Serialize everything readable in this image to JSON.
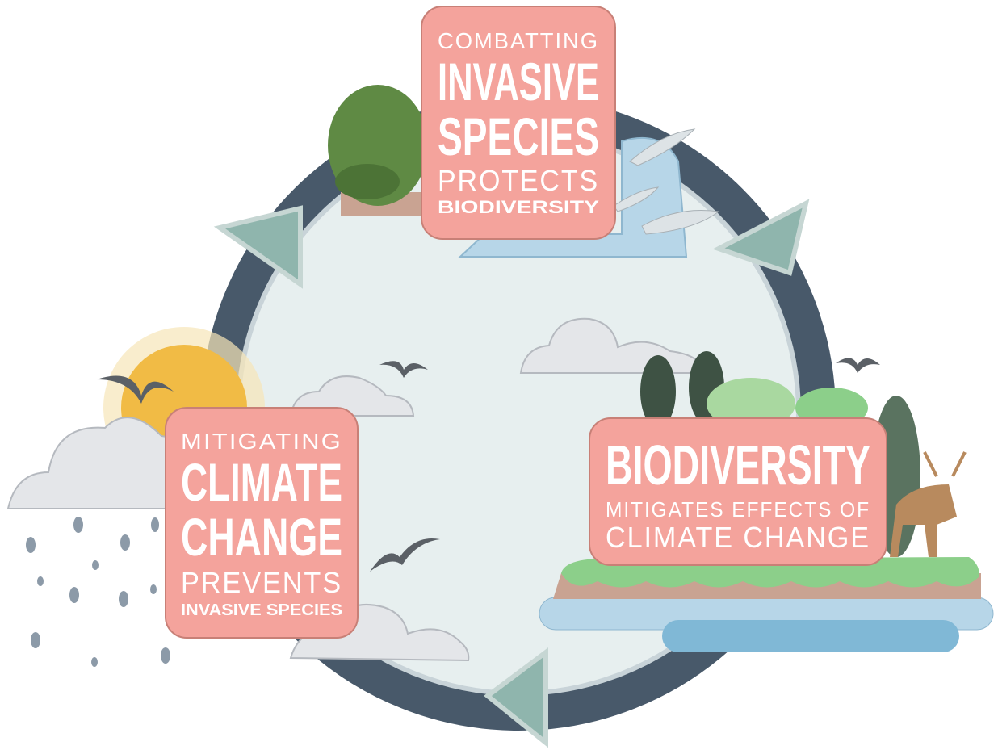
{
  "nodes": [
    {
      "lines": [
        "COMBATTING",
        "INVASIVE",
        "SPECIES",
        "PROTECTS",
        "BIODIVERSITY"
      ]
    },
    {
      "lines": [
        "MITIGATING",
        "CLIMATE",
        "CHANGE",
        "PREVENTS",
        "INVASIVE SPECIES"
      ]
    },
    {
      "lines": [
        "BIODIVERSITY",
        "MITIGATES EFFECTS OF",
        "CLIMATE CHANGE"
      ]
    }
  ]
}
